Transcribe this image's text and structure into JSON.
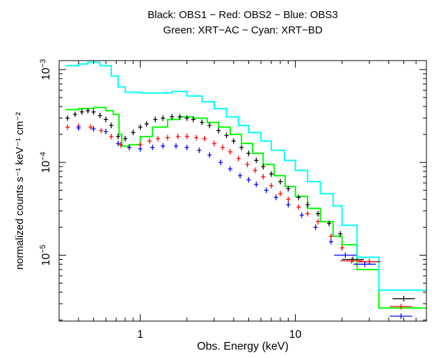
{
  "chart_data": {
    "type": "scatter",
    "title_line1": "Black: OBS1 − Red: OBS2 − Blue: OBS3",
    "title_line2": "Green: XRT−AC − Cyan: XRT−BD",
    "xlabel": "Obs. Energy (keV)",
    "ylabel": "normalized counts s⁻¹ keV⁻¹ cm⁻²",
    "xscale": "log",
    "yscale": "log",
    "xlim": [
      0.3,
      70
    ],
    "ylim": [
      1.95e-06,
      0.00125
    ],
    "x_ticks": [
      {
        "value": 1,
        "label": "1"
      },
      {
        "value": 10,
        "label": "10"
      }
    ],
    "y_ticks": [
      {
        "value": 0.001,
        "base": "10",
        "exp": "−3"
      },
      {
        "value": 0.0001,
        "base": "10",
        "exp": "−4"
      },
      {
        "value": 1e-05,
        "base": "10",
        "exp": "−5"
      }
    ],
    "grid": false,
    "legend": "none",
    "series": [
      {
        "label": "OBS1",
        "color": "#000000",
        "style": "crosses",
        "points": [
          [
            0.34,
            0.0003
          ],
          [
            0.38,
            0.00033
          ],
          [
            0.42,
            0.00035
          ],
          [
            0.46,
            0.00036
          ],
          [
            0.5,
            0.00035
          ],
          [
            0.55,
            0.00032
          ],
          [
            0.6,
            0.00029
          ],
          [
            0.65,
            0.00025
          ],
          [
            0.72,
            0.00019
          ],
          [
            0.8,
            0.00018
          ],
          [
            0.9,
            0.00021
          ],
          [
            1.0,
            0.00024
          ],
          [
            1.1,
            0.00026
          ],
          [
            1.25,
            0.00029
          ],
          [
            1.4,
            0.0003
          ],
          [
            1.6,
            0.00031
          ],
          [
            1.8,
            0.00031
          ],
          [
            2.0,
            0.0003
          ],
          [
            2.2,
            0.00029
          ],
          [
            2.5,
            0.00027
          ],
          [
            2.8,
            0.00025
          ],
          [
            3.2,
            0.00022
          ],
          [
            3.6,
            0.000195
          ],
          [
            4.0,
            0.00017
          ],
          [
            4.5,
            0.000145
          ],
          [
            5.0,
            0.000125
          ],
          [
            5.6,
            0.000105
          ],
          [
            6.2,
            9e-05
          ],
          [
            7.0,
            7.5e-05
          ],
          [
            8.0,
            6.2e-05
          ],
          [
            9.0,
            5.2e-05
          ],
          [
            10.5,
            4.2e-05
          ],
          [
            12.0,
            3.5e-05
          ],
          [
            14.0,
            2.8e-05
          ],
          [
            16.5,
            2.2e-05
          ],
          [
            19.5,
            1.7e-05
          ],
          [
            23.5,
            9e-06
          ],
          [
            30.0,
            8.5e-06
          ],
          [
            50.0,
            3.4e-06
          ]
        ]
      },
      {
        "label": "OBS2",
        "color": "#ff0000",
        "style": "crosses",
        "points": [
          [
            0.34,
            0.00024
          ],
          [
            0.4,
            0.000245
          ],
          [
            0.48,
            0.00024
          ],
          [
            0.56,
            0.00022
          ],
          [
            0.65,
            0.00019
          ],
          [
            0.75,
            0.000155
          ],
          [
            0.85,
            0.000145
          ],
          [
            1.0,
            0.000155
          ],
          [
            1.15,
            0.00017
          ],
          [
            1.3,
            0.00018
          ],
          [
            1.5,
            0.000185
          ],
          [
            1.75,
            0.00019
          ],
          [
            2.0,
            0.00019
          ],
          [
            2.3,
            0.000185
          ],
          [
            2.6,
            0.00018
          ],
          [
            3.0,
            0.00016
          ],
          [
            3.4,
            0.000145
          ],
          [
            3.8,
            0.00013
          ],
          [
            4.3,
            0.00011
          ],
          [
            4.9,
            9.5e-05
          ],
          [
            5.5,
            8.2e-05
          ],
          [
            6.2,
            7e-05
          ],
          [
            7.0,
            5.6e-05
          ],
          [
            8.0,
            4.6e-05
          ],
          [
            9.0,
            4e-05
          ],
          [
            10.5,
            3.3e-05
          ],
          [
            12.0,
            2.8e-05
          ],
          [
            14.0,
            2.3e-05
          ],
          [
            17.0,
            1.6e-05
          ],
          [
            20.0,
            1.2e-05
          ],
          [
            23.0,
            8.7e-06
          ],
          [
            30.0,
            8.5e-06
          ],
          [
            48.0,
            2.8e-06
          ]
        ]
      },
      {
        "label": "OBS3",
        "color": "#0000ff",
        "style": "crosses",
        "points": [
          [
            0.4,
            0.000235
          ],
          [
            0.5,
            0.00023
          ],
          [
            0.6,
            0.000215
          ],
          [
            0.72,
            0.00016
          ],
          [
            0.85,
            0.000145
          ],
          [
            1.0,
            0.00014
          ],
          [
            1.2,
            0.000145
          ],
          [
            1.4,
            0.00015
          ],
          [
            1.7,
            0.00015
          ],
          [
            2.0,
            0.000145
          ],
          [
            2.4,
            0.000135
          ],
          [
            2.8,
            0.00012
          ],
          [
            3.3,
            0.0001
          ],
          [
            3.8,
            8.5e-05
          ],
          [
            4.4,
            7.2e-05
          ],
          [
            5.0,
            6.5e-05
          ],
          [
            5.6,
            5.8e-05
          ],
          [
            6.5,
            5e-05
          ],
          [
            7.5,
            4.2e-05
          ],
          [
            9.0,
            3.5e-05
          ],
          [
            11.0,
            2.7e-05
          ],
          [
            13.5,
            2e-05
          ],
          [
            17.0,
            1.4e-05
          ],
          [
            21.0,
            1e-05
          ],
          [
            28.0,
            8e-06
          ],
          [
            48.0,
            2.2e-06
          ]
        ]
      },
      {
        "label": "XRT−AC",
        "color": "#00ff00",
        "style": "step",
        "points": [
          [
            0.33,
            0.00037
          ],
          [
            0.4,
            0.00038
          ],
          [
            0.5,
            0.00039
          ],
          [
            0.6,
            0.00036
          ],
          [
            0.67,
            0.00033
          ],
          [
            0.73,
            0.0002
          ],
          [
            0.76,
            0.00015
          ],
          [
            0.85,
            0.000155
          ],
          [
            1.0,
            0.00019
          ],
          [
            1.2,
            0.00024
          ],
          [
            1.5,
            0.00029
          ],
          [
            1.8,
            0.00031
          ],
          [
            2.2,
            0.0003
          ],
          [
            2.7,
            0.00027
          ],
          [
            3.2,
            0.00024
          ],
          [
            3.8,
            0.0002
          ],
          [
            4.5,
            0.00016
          ],
          [
            5.3,
            0.000125
          ],
          [
            6.2,
            9.5e-05
          ],
          [
            7.3,
            7.2e-05
          ],
          [
            8.6,
            5.5e-05
          ],
          [
            10.0,
            4.3e-05
          ],
          [
            12.0,
            3.2e-05
          ],
          [
            14.5,
            2.3e-05
          ],
          [
            17.5,
            1.6e-05
          ],
          [
            20.0,
            1.3e-05
          ],
          [
            25.0,
            7e-06
          ],
          [
            34.5,
            2.7e-06
          ],
          [
            70.0,
            2.7e-06
          ]
        ]
      },
      {
        "label": "XRT−BD",
        "color": "#00ffff",
        "style": "step",
        "points": [
          [
            0.33,
            0.0011
          ],
          [
            0.4,
            0.00115
          ],
          [
            0.46,
            0.0012
          ],
          [
            0.55,
            0.0011
          ],
          [
            0.65,
            0.00085
          ],
          [
            0.72,
            0.00065
          ],
          [
            0.8,
            0.00057
          ],
          [
            1.0,
            0.00056
          ],
          [
            1.3,
            0.00056
          ],
          [
            1.6,
            0.00058
          ],
          [
            2.0,
            0.00052
          ],
          [
            2.5,
            0.00045
          ],
          [
            3.0,
            0.00038
          ],
          [
            3.6,
            0.00031
          ],
          [
            4.3,
            0.00025
          ],
          [
            5.0,
            0.00021
          ],
          [
            6.0,
            0.00017
          ],
          [
            7.0,
            0.000135
          ],
          [
            8.5,
            0.000105
          ],
          [
            10.0,
            8.2e-05
          ],
          [
            12.0,
            6.2e-05
          ],
          [
            14.5,
            4.6e-05
          ],
          [
            17.5,
            3.4e-05
          ],
          [
            20.0,
            2.1e-05
          ],
          [
            25.0,
            9.5e-06
          ],
          [
            34.5,
            4.2e-06
          ],
          [
            70.0,
            4.2e-06
          ]
        ]
      }
    ]
  }
}
